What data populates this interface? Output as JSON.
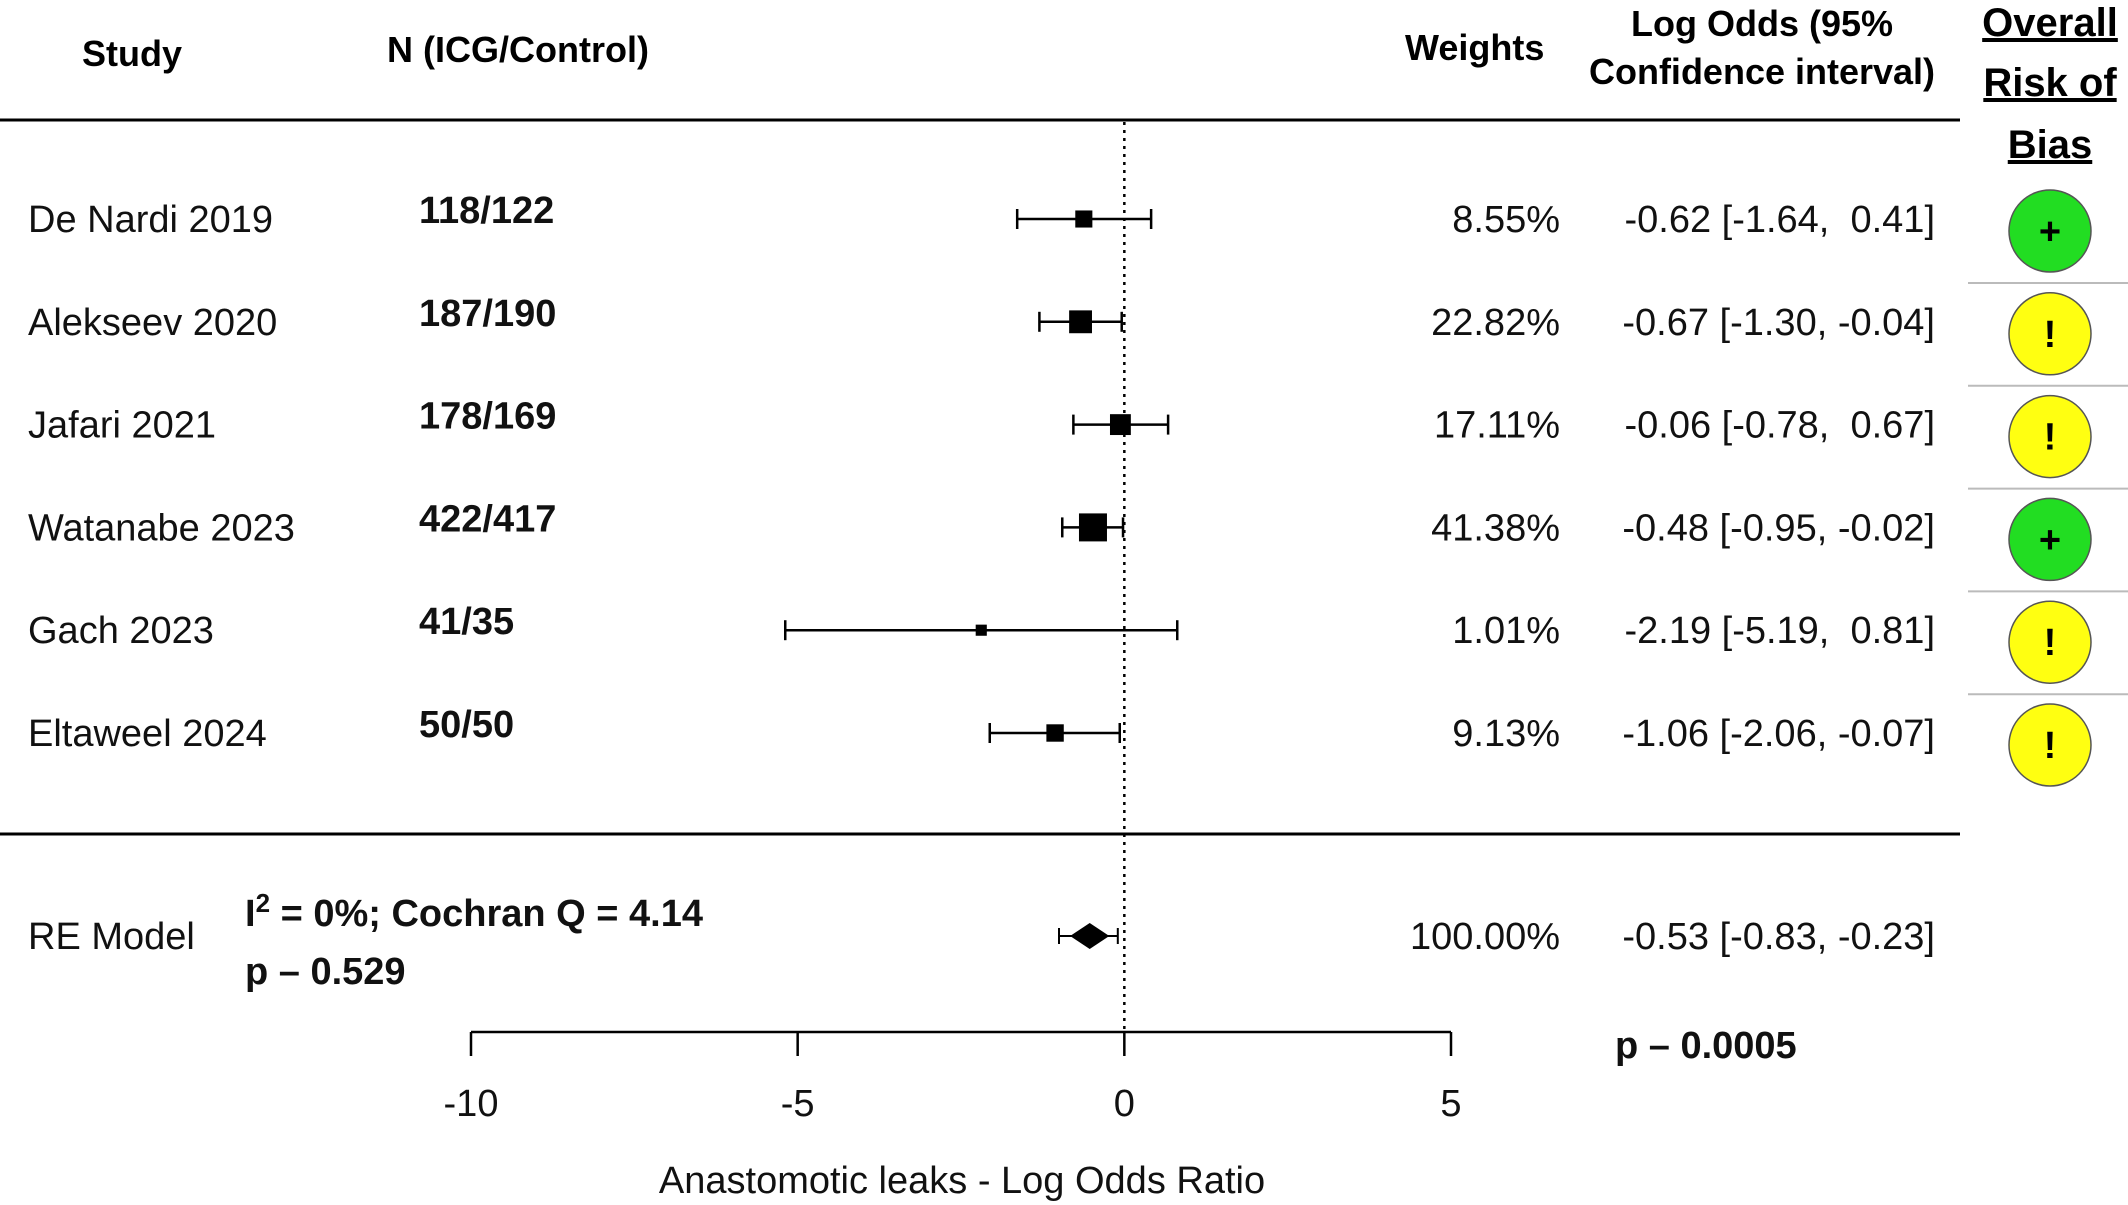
{
  "headers": {
    "study": "Study",
    "n": "N (ICG/Control)",
    "weights": "Weights",
    "log_odds_line1": "Log Odds (95%",
    "log_odds_line2": "Confidence interval)",
    "rob_line1": "Overall",
    "rob_line2": "Risk of",
    "rob_line3": "Bias"
  },
  "chart_data": {
    "type": "forest",
    "xlabel": "Anastomotic leaks - Log Odds Ratio",
    "xlim": [
      -10,
      5
    ],
    "xticks": [
      -10,
      -5,
      0,
      5
    ],
    "reference_line": 0,
    "studies": [
      {
        "study": "De Nardi 2019",
        "n": "118/122",
        "estimate": -0.62,
        "lower": -1.64,
        "upper": 0.41,
        "weight": 8.55,
        "weight_label": "8.55%",
        "ci_label": "-0.62 [-1.64,  0.41]",
        "rob": "+",
        "rob_level": "low"
      },
      {
        "study": "Alekseev 2020",
        "n": "187/190",
        "estimate": -0.67,
        "lower": -1.3,
        "upper": -0.04,
        "weight": 22.82,
        "weight_label": "22.82%",
        "ci_label": "-0.67 [-1.30, -0.04]",
        "rob": "!",
        "rob_level": "some concerns"
      },
      {
        "study": "Jafari 2021",
        "n": "178/169",
        "estimate": -0.06,
        "lower": -0.78,
        "upper": 0.67,
        "weight": 17.11,
        "weight_label": "17.11%",
        "ci_label": "-0.06 [-0.78,  0.67]",
        "rob": "!",
        "rob_level": "some concerns"
      },
      {
        "study": "Watanabe 2023",
        "n": "422/417",
        "estimate": -0.48,
        "lower": -0.95,
        "upper": -0.02,
        "weight": 41.38,
        "weight_label": "41.38%",
        "ci_label": "-0.48 [-0.95, -0.02]",
        "rob": "+",
        "rob_level": "low"
      },
      {
        "study": "Gach 2023",
        "n": "41/35",
        "estimate": -2.19,
        "lower": -5.19,
        "upper": 0.81,
        "weight": 1.01,
        "weight_label": "1.01%",
        "ci_label": "-2.19 [-5.19,  0.81]",
        "rob": "!",
        "rob_level": "some concerns"
      },
      {
        "study": "Eltaweel 2024",
        "n": "50/50",
        "estimate": -1.06,
        "lower": -2.06,
        "upper": -0.07,
        "weight": 9.13,
        "weight_label": "9.13%",
        "ci_label": "-1.06 [-2.06, -0.07]",
        "rob": "!",
        "rob_level": "some concerns"
      }
    ],
    "pooled": {
      "label": "RE Model",
      "stat_i2_prefix": "I",
      "stat_i2_sup": "2",
      "stat_i2_rest": " = 0%; Cochran Q = 4.14",
      "stat_p": "p – 0.529",
      "estimate": -0.53,
      "lower": -0.83,
      "upper": -0.23,
      "weight_label": "100.00%",
      "ci_label": "-0.53 [-0.83, -0.23]",
      "p_overall": "p – 0.0005"
    }
  },
  "colors": {
    "rob_low": "#22dd22",
    "rob_concerns": "#ffff11",
    "line": "#000000"
  }
}
